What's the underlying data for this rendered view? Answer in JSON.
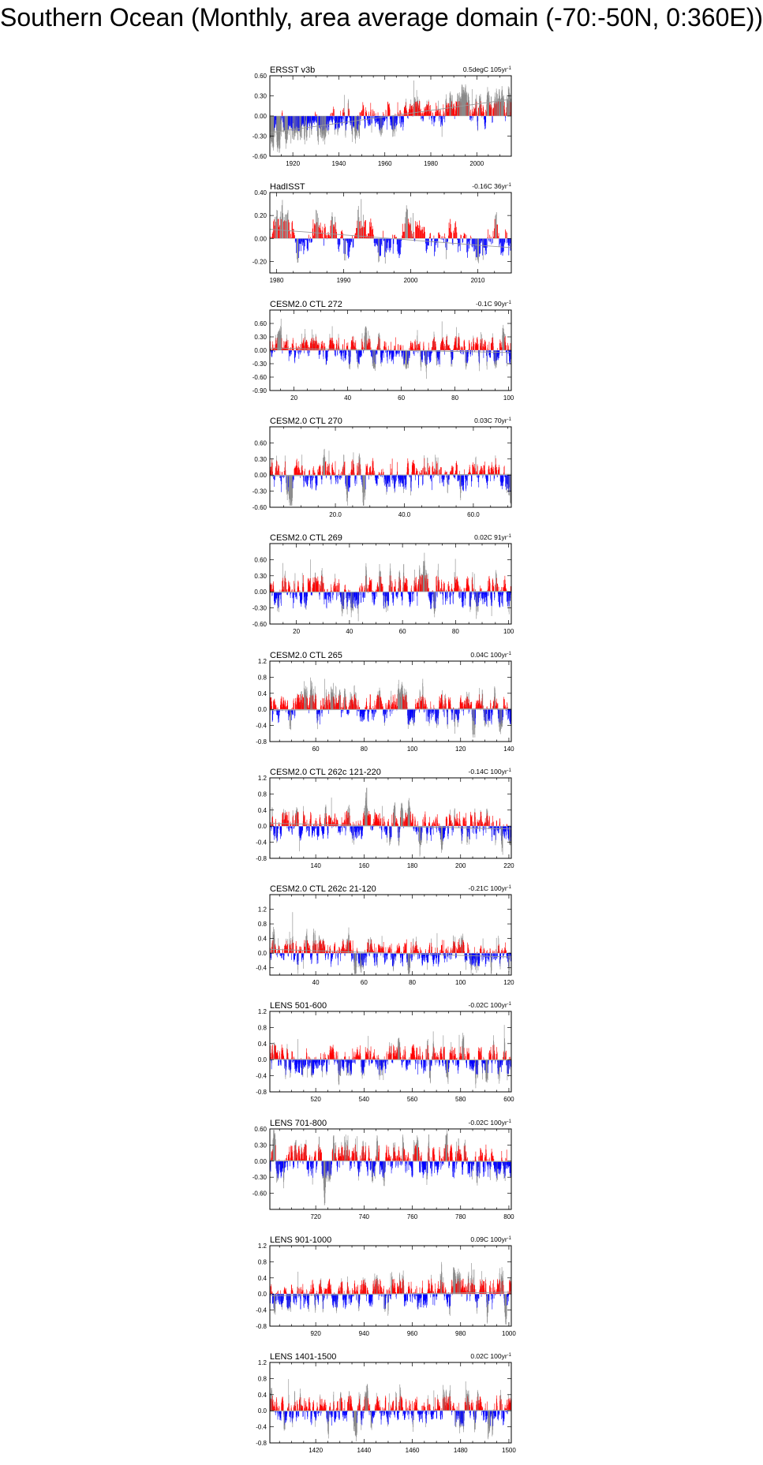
{
  "page": {
    "title": "Southern Ocean (Monthly, area average domain (-70:-50N, 0:360E))"
  },
  "style": {
    "positive_color": "#ff0000",
    "negative_color": "#0000ff",
    "spike_color": "#8a8a8a",
    "trend_line_color": "#9a9a9a"
  },
  "chart_data": [
    {
      "type": "bar",
      "title": "ERSST v3b",
      "annotation": "0.5degC 105yr",
      "x_range": [
        1910,
        2015
      ],
      "ylim": [
        -0.6,
        0.6
      ],
      "xticks": [
        1920,
        1940,
        1960,
        1980,
        2000
      ],
      "xtick_labels": [
        "1920",
        "1940",
        "1960",
        "1980",
        "2000"
      ],
      "yticks": [
        -0.6,
        -0.3,
        0,
        0.3,
        0.6
      ],
      "ytick_labels": [
        "-0.60",
        "-0.30",
        "0.00",
        "0.30",
        "0.60"
      ],
      "trend": 0.5,
      "amplitude": 0.14,
      "seed": 11
    },
    {
      "type": "bar",
      "title": "HadISST",
      "annotation": "-0.16C 36yr",
      "x_range": [
        1979,
        2015
      ],
      "ylim": [
        -0.3,
        0.4
      ],
      "xticks": [
        1980,
        1990,
        2000,
        2010
      ],
      "xtick_labels": [
        "1980",
        "1990",
        "2000",
        "2010"
      ],
      "yticks": [
        -0.2,
        0,
        0.2,
        0.4
      ],
      "ytick_labels": [
        "-0.20",
        "0.00",
        "0.20",
        "0.40"
      ],
      "trend": -0.16,
      "amplitude": 0.11,
      "seed": 23
    },
    {
      "type": "bar",
      "title": "CESM2.0 CTL 272",
      "annotation": "-0.1C 90yr",
      "x_range": [
        11,
        101
      ],
      "ylim": [
        -0.9,
        0.9
      ],
      "xticks": [
        20,
        40,
        60,
        80,
        100
      ],
      "xtick_labels": [
        "20",
        "40",
        "60",
        "80",
        "100"
      ],
      "yticks": [
        -0.9,
        -0.6,
        -0.3,
        0,
        0.3,
        0.6
      ],
      "ytick_labels": [
        "-0.90",
        "-0.60",
        "-0.30",
        "0.00",
        "0.30",
        "0.60"
      ],
      "trend": -0.1,
      "amplitude": 0.2,
      "seed": 37
    },
    {
      "type": "bar",
      "title": "CESM2.0 CTL 270",
      "annotation": "0.03C 70yr",
      "x_range": [
        1,
        71
      ],
      "ylim": [
        -0.6,
        0.9
      ],
      "xticks": [
        20,
        40,
        60
      ],
      "xtick_labels": [
        "20.0",
        "40.0",
        "60.0"
      ],
      "yticks": [
        -0.6,
        -0.3,
        0,
        0.3,
        0.6
      ],
      "ytick_labels": [
        "-0.60",
        "-0.30",
        "0.00",
        "0.30",
        "0.60"
      ],
      "trend": 0.03,
      "amplitude": 0.2,
      "seed": 41
    },
    {
      "type": "bar",
      "title": "CESM2.0 CTL 269",
      "annotation": "0.02C 91yr",
      "x_range": [
        10,
        101
      ],
      "ylim": [
        -0.6,
        0.9
      ],
      "xticks": [
        20,
        40,
        60,
        80,
        100
      ],
      "xtick_labels": [
        "20",
        "40",
        "60",
        "80",
        "100"
      ],
      "yticks": [
        -0.6,
        -0.3,
        0,
        0.3,
        0.6
      ],
      "ytick_labels": [
        "-0.60",
        "-0.30",
        "0.00",
        "0.30",
        "0.60"
      ],
      "trend": 0.02,
      "amplitude": 0.2,
      "seed": 53
    },
    {
      "type": "bar",
      "title": "CESM2.0 CTL 265",
      "annotation": "0.04C 100yr",
      "x_range": [
        41,
        141
      ],
      "ylim": [
        -0.8,
        1.2
      ],
      "xticks": [
        60,
        80,
        100,
        120,
        140
      ],
      "xtick_labels": [
        "60",
        "80",
        "100",
        "120",
        "140"
      ],
      "yticks": [
        -0.8,
        -0.4,
        0,
        0.4,
        0.8,
        1.2
      ],
      "ytick_labels": [
        "-0.8",
        "-0.4",
        "0.0",
        "0.4",
        "0.8",
        "1.2"
      ],
      "trend": 0.04,
      "amplitude": 0.24,
      "seed": 67
    },
    {
      "type": "bar",
      "title": "CESM2.0 CTL 262c 121-220",
      "annotation": "-0.14C 100yr",
      "x_range": [
        121,
        221
      ],
      "ylim": [
        -0.8,
        1.2
      ],
      "xticks": [
        140,
        160,
        180,
        200,
        220
      ],
      "xtick_labels": [
        "140",
        "160",
        "180",
        "200",
        "220"
      ],
      "yticks": [
        -0.8,
        -0.4,
        0,
        0.4,
        0.8,
        1.2
      ],
      "ytick_labels": [
        "-0.8",
        "-0.4",
        "0.0",
        "0.4",
        "0.8",
        "1.2"
      ],
      "trend": -0.14,
      "amplitude": 0.24,
      "seed": 71
    },
    {
      "type": "bar",
      "title": "CESM2.0 CTL 262c 21-120",
      "annotation": "-0.21C 100yr",
      "x_range": [
        21,
        121
      ],
      "ylim": [
        -0.6,
        1.6
      ],
      "xticks": [
        40,
        60,
        80,
        100,
        120
      ],
      "xtick_labels": [
        "40",
        "60",
        "80",
        "100",
        "120"
      ],
      "yticks": [
        -0.4,
        0,
        0.4,
        0.8,
        1.2
      ],
      "ytick_labels": [
        "-0.4",
        "0.0",
        "0.4",
        "0.8",
        "1.2"
      ],
      "trend": -0.21,
      "amplitude": 0.24,
      "seed": 83
    },
    {
      "type": "bar",
      "title": "LENS 501-600",
      "annotation": "-0.02C 100yr",
      "x_range": [
        501,
        601
      ],
      "ylim": [
        -0.8,
        1.2
      ],
      "xticks": [
        520,
        540,
        560,
        580,
        600
      ],
      "xtick_labels": [
        "520",
        "540",
        "560",
        "580",
        "600"
      ],
      "yticks": [
        -0.8,
        -0.4,
        0,
        0.4,
        0.8,
        1.2
      ],
      "ytick_labels": [
        "-0.8",
        "-0.4",
        "0.0",
        "0.4",
        "0.8",
        "1.2"
      ],
      "trend": -0.02,
      "amplitude": 0.24,
      "seed": 97
    },
    {
      "type": "bar",
      "title": "LENS 701-800",
      "annotation": "-0.02C 100yr",
      "x_range": [
        701,
        801
      ],
      "ylim": [
        -0.9,
        0.6
      ],
      "xticks": [
        720,
        740,
        760,
        780,
        800
      ],
      "xtick_labels": [
        "720",
        "740",
        "760",
        "780",
        "800"
      ],
      "yticks": [
        -0.6,
        -0.3,
        0,
        0.3,
        0.6
      ],
      "ytick_labels": [
        "-0.60",
        "-0.30",
        "0.00",
        "0.30",
        "0.60"
      ],
      "trend": -0.02,
      "amplitude": 0.2,
      "seed": 101
    },
    {
      "type": "bar",
      "title": "LENS 901-1000",
      "annotation": "0.09C 100yr",
      "x_range": [
        901,
        1001
      ],
      "ylim": [
        -0.8,
        1.2
      ],
      "xticks": [
        920,
        940,
        960,
        980,
        1000
      ],
      "xtick_labels": [
        "920",
        "940",
        "960",
        "980",
        "1000"
      ],
      "yticks": [
        -0.8,
        -0.4,
        0,
        0.4,
        0.8,
        1.2
      ],
      "ytick_labels": [
        "-0.8",
        "-0.4",
        "0.0",
        "0.4",
        "0.8",
        "1.2"
      ],
      "trend": 0.09,
      "amplitude": 0.24,
      "seed": 113
    },
    {
      "type": "bar",
      "title": "LENS 1401-1500",
      "annotation": "0.02C 100yr",
      "x_range": [
        1401,
        1501
      ],
      "ylim": [
        -0.8,
        1.2
      ],
      "xticks": [
        1420,
        1440,
        1460,
        1480,
        1500
      ],
      "xtick_labels": [
        "1420",
        "1440",
        "1460",
        "1480",
        "1500"
      ],
      "yticks": [
        -0.8,
        -0.4,
        0,
        0.4,
        0.8,
        1.2
      ],
      "ytick_labels": [
        "-0.8",
        "-0.4",
        "0.0",
        "0.4",
        "0.8",
        "1.2"
      ],
      "trend": 0.02,
      "amplitude": 0.24,
      "seed": 127
    }
  ]
}
